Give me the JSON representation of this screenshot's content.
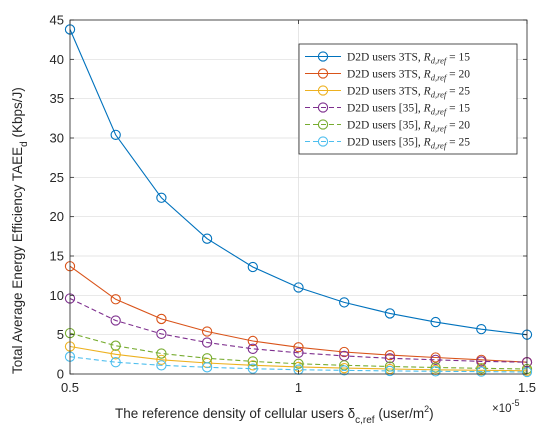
{
  "chart_data": {
    "type": "line",
    "xlabel": "The reference density of cellular users δ",
    "xlabel_sub": "c,ref",
    "xlabel_unit": " (user/m",
    "xlabel_unit_sup": "2",
    "xlabel_unit_end": ")",
    "x_multiplier": "×10",
    "x_multiplier_exp": "-5",
    "ylabel": "Total Average Energy Efficiency TAEE",
    "ylabel_sub": "d",
    "ylabel_unit": " (Kbps/J)",
    "xlim": [
      0.5,
      1.5
    ],
    "ylim": [
      0,
      45
    ],
    "xticks": [
      0.5,
      1,
      1.5
    ],
    "xtick_labels": [
      "0.5",
      "1",
      "1.5"
    ],
    "yticks": [
      0,
      5,
      10,
      15,
      20,
      25,
      30,
      35,
      40,
      45
    ],
    "ytick_labels": [
      "0",
      "5",
      "10",
      "15",
      "20",
      "25",
      "30",
      "35",
      "40",
      "45"
    ],
    "grid": true,
    "legend_position": "top-right",
    "x": [
      0.5,
      0.6,
      0.7,
      0.8,
      0.9,
      1.0,
      1.1,
      1.2,
      1.3,
      1.4,
      1.5
    ],
    "series": [
      {
        "legend_main": "D2D users 3TS, ",
        "legend_r": "R",
        "legend_r_sub": "d,ref",
        "legend_eq": " = 15",
        "color": "#0072BD",
        "dashed": false,
        "values": [
          43.8,
          30.4,
          22.4,
          17.2,
          13.6,
          11.0,
          9.1,
          7.7,
          6.6,
          5.7,
          5.0
        ]
      },
      {
        "legend_main": "D2D users 3TS, ",
        "legend_r": "R",
        "legend_r_sub": "d,ref",
        "legend_eq": " = 20",
        "color": "#D95319",
        "dashed": false,
        "values": [
          13.7,
          9.5,
          7.0,
          5.4,
          4.2,
          3.4,
          2.8,
          2.4,
          2.1,
          1.8,
          1.5
        ]
      },
      {
        "legend_main": "D2D users 3TS, ",
        "legend_r": "R",
        "legend_r_sub": "d,ref",
        "legend_eq": " = 25",
        "color": "#EDB120",
        "dashed": false,
        "values": [
          3.5,
          2.5,
          1.8,
          1.4,
          1.1,
          0.9,
          0.75,
          0.63,
          0.54,
          0.47,
          0.41
        ]
      },
      {
        "legend_main": "D2D users [35], ",
        "legend_r": "R",
        "legend_r_sub": "d,ref",
        "legend_eq": " = 15",
        "color": "#7E2F8E",
        "dashed": true,
        "values": [
          9.6,
          6.8,
          5.1,
          4.0,
          3.2,
          2.7,
          2.3,
          2.0,
          1.8,
          1.6,
          1.5
        ]
      },
      {
        "legend_main": "D2D users [35], ",
        "legend_r": "R",
        "legend_r_sub": "d,ref",
        "legend_eq": " = 20",
        "color": "#77AC30",
        "dashed": true,
        "values": [
          5.2,
          3.6,
          2.6,
          2.0,
          1.6,
          1.3,
          1.1,
          0.95,
          0.82,
          0.72,
          0.64
        ]
      },
      {
        "legend_main": "D2D users [35], ",
        "legend_r": "R",
        "legend_r_sub": "d,ref",
        "legend_eq": " = 25",
        "color": "#4DBEEE",
        "dashed": true,
        "values": [
          2.2,
          1.5,
          1.1,
          0.85,
          0.68,
          0.55,
          0.46,
          0.39,
          0.34,
          0.3,
          0.26
        ]
      }
    ]
  }
}
